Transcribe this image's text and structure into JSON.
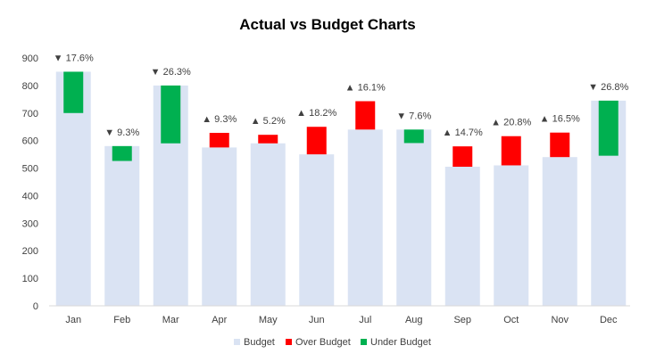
{
  "chart_data": {
    "type": "bar",
    "title": "Actual vs Budget Charts",
    "categories": [
      "Jan",
      "Feb",
      "Mar",
      "Apr",
      "May",
      "Jun",
      "Jul",
      "Aug",
      "Sep",
      "Oct",
      "Nov",
      "Dec"
    ],
    "budget": [
      850,
      580,
      800,
      575,
      590,
      550,
      640,
      640,
      505,
      510,
      540,
      745
    ],
    "actual": [
      700,
      526,
      590,
      628,
      621,
      650,
      743,
      591,
      579,
      616,
      629,
      545
    ],
    "variance_labels": [
      "▼ 17.6%",
      "▼ 9.3%",
      "▼ 26.3%",
      "▲ 9.3%",
      "▲ 5.2%",
      "▲ 18.2%",
      "▲ 16.1%",
      "▼ 7.6%",
      "▲ 14.7%",
      "▲ 20.8%",
      "▲ 16.5%",
      "▼ 26.8%"
    ],
    "ylim": [
      0,
      900
    ],
    "yticks": [
      0,
      100,
      200,
      300,
      400,
      500,
      600,
      700,
      800,
      900
    ],
    "grid": false,
    "legend": {
      "placement": "bottom",
      "entries": [
        "Budget",
        "Over Budget",
        "Under Budget"
      ]
    },
    "colors": {
      "budget": "#dae3f3",
      "over": "#ff0000",
      "under": "#00b050"
    }
  }
}
